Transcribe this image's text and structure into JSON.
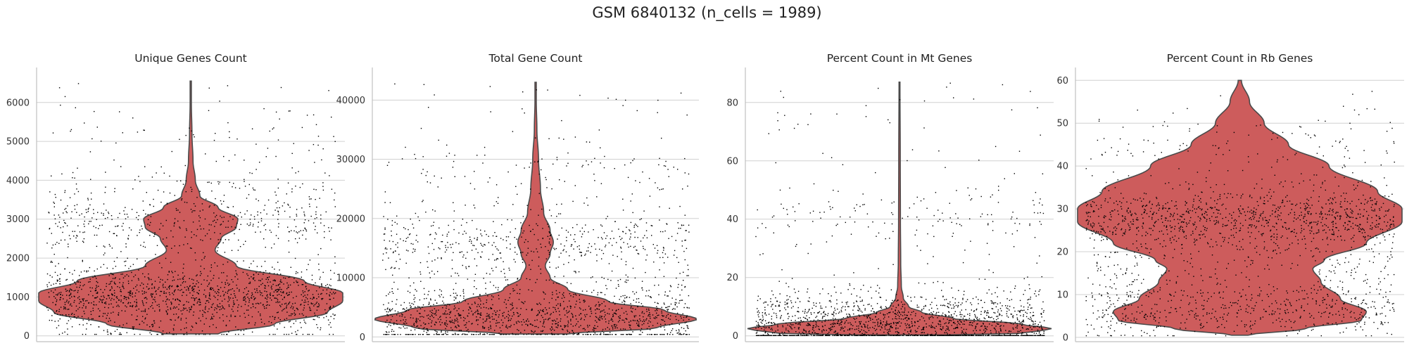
{
  "figure": {
    "title": "GSM 6840132 (n_cells = 1989)"
  },
  "colors": {
    "violin_fill": "#cd5c5c",
    "violin_edge": "#4a4a4a",
    "points": "#000000",
    "grid": "#d0d0d0"
  },
  "chart_data": [
    {
      "type": "violin",
      "title": "Unique Genes Count",
      "xlabel": "",
      "ylabel": "",
      "ylim": [
        -150,
        6900
      ],
      "yticks": [
        0,
        1000,
        2000,
        3000,
        4000,
        5000,
        6000
      ],
      "grid": "horizontal",
      "n_points": 1989,
      "data_range": [
        50,
        6550
      ],
      "density_profile": [
        [
          50,
          0.18
        ],
        [
          300,
          0.55
        ],
        [
          600,
          0.9
        ],
        [
          900,
          1.0
        ],
        [
          1100,
          1.0
        ],
        [
          1400,
          0.75
        ],
        [
          1800,
          0.3
        ],
        [
          2200,
          0.16
        ],
        [
          2500,
          0.2
        ],
        [
          2800,
          0.3
        ],
        [
          3000,
          0.31
        ],
        [
          3300,
          0.18
        ],
        [
          3600,
          0.06
        ],
        [
          4000,
          0.03
        ],
        [
          4500,
          0.015
        ],
        [
          5200,
          0.008
        ],
        [
          6000,
          0.004
        ],
        [
          6550,
          0.004
        ]
      ],
      "point_clusters": [
        [
          1100,
          0.55
        ],
        [
          2900,
          0.22
        ],
        [
          400,
          0.15
        ],
        [
          3800,
          0.06
        ],
        [
          5000,
          0.02
        ]
      ]
    },
    {
      "type": "violin",
      "title": "Total Gene Count",
      "xlabel": "",
      "ylabel": "",
      "ylim": [
        -800,
        45500
      ],
      "yticks": [
        0,
        10000,
        20000,
        30000,
        40000
      ],
      "grid": "horizontal",
      "n_points": 1989,
      "data_range": [
        500,
        43000
      ],
      "density_profile": [
        [
          500,
          0.2
        ],
        [
          1500,
          0.75
        ],
        [
          3000,
          1.0
        ],
        [
          4500,
          0.8
        ],
        [
          6000,
          0.45
        ],
        [
          8000,
          0.2
        ],
        [
          10000,
          0.09
        ],
        [
          12000,
          0.06
        ],
        [
          14000,
          0.09
        ],
        [
          16000,
          0.11
        ],
        [
          18000,
          0.09
        ],
        [
          21000,
          0.05
        ],
        [
          25000,
          0.03
        ],
        [
          30000,
          0.018
        ],
        [
          35000,
          0.008
        ],
        [
          40000,
          0.004
        ],
        [
          43000,
          0.004
        ]
      ],
      "point_clusters": [
        [
          3000,
          0.6
        ],
        [
          16000,
          0.25
        ],
        [
          8000,
          0.1
        ],
        [
          28000,
          0.05
        ]
      ]
    },
    {
      "type": "violin",
      "title": "Percent Count in Mt Genes",
      "xlabel": "",
      "ylabel": "",
      "ylim": [
        -2,
        92
      ],
      "yticks": [
        0,
        20,
        40,
        60,
        80
      ],
      "grid": "horizontal",
      "n_points": 1989,
      "data_range": [
        0.3,
        87
      ],
      "density_profile": [
        [
          0.3,
          0.3
        ],
        [
          1,
          0.85
        ],
        [
          2.5,
          1.0
        ],
        [
          4,
          0.8
        ],
        [
          6,
          0.35
        ],
        [
          8,
          0.15
        ],
        [
          10,
          0.06
        ],
        [
          13,
          0.025
        ],
        [
          17,
          0.012
        ],
        [
          25,
          0.008
        ],
        [
          40,
          0.006
        ],
        [
          60,
          0.005
        ],
        [
          87,
          0.003
        ]
      ],
      "point_clusters": [
        [
          2.5,
          0.82
        ],
        [
          9,
          0.12
        ],
        [
          40,
          0.06
        ]
      ]
    },
    {
      "type": "violin",
      "title": "Percent Count in Rb Genes",
      "xlabel": "",
      "ylabel": "",
      "ylim": [
        -1,
        63
      ],
      "yticks": [
        0,
        10,
        20,
        30,
        40,
        50,
        60
      ],
      "grid": "horizontal",
      "n_points": 1989,
      "data_range": [
        0.5,
        60
      ],
      "density_profile": [
        [
          0.5,
          0.05
        ],
        [
          2,
          0.4
        ],
        [
          4,
          0.75
        ],
        [
          6,
          0.78
        ],
        [
          9,
          0.62
        ],
        [
          13,
          0.5
        ],
        [
          16,
          0.45
        ],
        [
          18,
          0.52
        ],
        [
          22,
          0.78
        ],
        [
          27,
          1.0
        ],
        [
          30,
          1.0
        ],
        [
          34,
          0.85
        ],
        [
          40,
          0.55
        ],
        [
          45,
          0.3
        ],
        [
          50,
          0.15
        ],
        [
          55,
          0.06
        ],
        [
          60,
          0.01
        ]
      ],
      "point_clusters": [
        [
          28,
          0.55
        ],
        [
          7,
          0.3
        ],
        [
          18,
          0.1
        ],
        [
          45,
          0.05
        ]
      ]
    }
  ]
}
